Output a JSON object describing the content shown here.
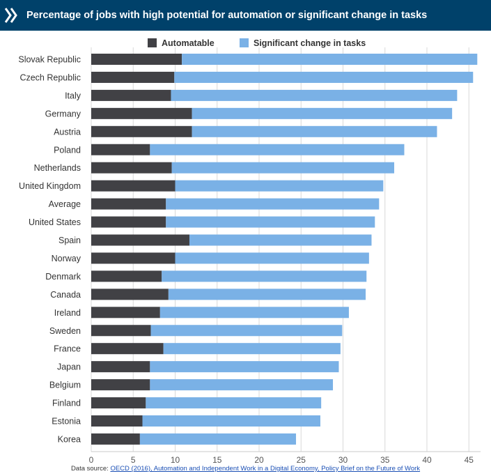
{
  "header": {
    "title": "Percentage of jobs with high potential for automation or significant change in tasks",
    "logo_icon": "oecd-double-chevron-icon",
    "background": "#00416a"
  },
  "source": {
    "prefix": "Data source: ",
    "link_text": "OECD (2016), Automation and Independent Work in a Digital Economy, Policy Brief on the Future of Work"
  },
  "chart_data": {
    "type": "bar",
    "orientation": "horizontal",
    "stacked": true,
    "title": "Percentage of jobs with high potential for automation or significant change in tasks",
    "xlim": [
      0,
      46
    ],
    "xticks": [
      0,
      5,
      10,
      15,
      20,
      25,
      30,
      35,
      40,
      45
    ],
    "grid": "vertical",
    "legend_position": "top",
    "categories": [
      "Slovak Republic",
      "Czech Republic",
      "Italy",
      "Germany",
      "Austria",
      "Poland",
      "Netherlands",
      "United Kingdom",
      "Average",
      "United States",
      "Spain",
      "Norway",
      "Denmark",
      "Canada",
      "Ireland",
      "Sweden",
      "France",
      "Japan",
      "Belgium",
      "Finland",
      "Estonia",
      "Korea"
    ],
    "series": [
      {
        "name": "Automatable",
        "color": "#414145",
        "values": [
          10.8,
          9.9,
          9.5,
          12.0,
          12.0,
          7.0,
          9.6,
          10.0,
          8.9,
          8.9,
          11.7,
          10.0,
          8.4,
          9.2,
          8.2,
          7.1,
          8.6,
          7.0,
          7.0,
          6.5,
          6.1,
          5.8
        ]
      },
      {
        "name": "Significant change in tasks",
        "color": "#7ab1e6",
        "values": [
          35.2,
          35.6,
          34.1,
          31.0,
          29.2,
          30.3,
          26.5,
          24.8,
          25.4,
          24.9,
          21.7,
          23.1,
          24.4,
          23.5,
          22.5,
          22.8,
          21.1,
          22.5,
          21.8,
          20.9,
          21.2,
          18.6
        ]
      }
    ]
  }
}
